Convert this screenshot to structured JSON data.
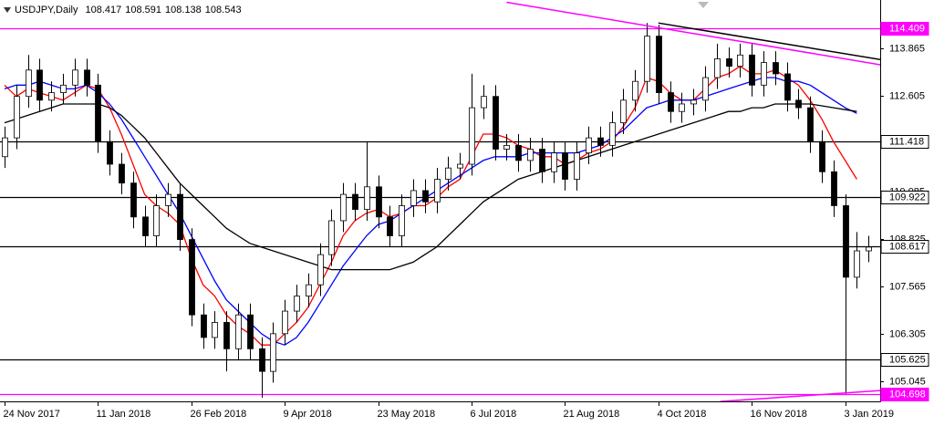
{
  "chart_data": {
    "type": "candlestick",
    "title": "USDJPY,Daily",
    "title_values": [
      108.417,
      108.591,
      108.138,
      108.543
    ],
    "categories": [
      "24 Nov 2017",
      null,
      null,
      null,
      null,
      null,
      null,
      null,
      "11 Jan 2018",
      null,
      null,
      null,
      null,
      null,
      null,
      null,
      "26 Feb 2018",
      null,
      null,
      null,
      null,
      null,
      null,
      null,
      "9 Apr 2018",
      null,
      null,
      null,
      null,
      null,
      null,
      null,
      "23 May 2018",
      null,
      null,
      null,
      null,
      null,
      null,
      null,
      "6 Jul 2018",
      null,
      null,
      null,
      null,
      null,
      null,
      null,
      "21 Aug 2018",
      null,
      null,
      null,
      null,
      null,
      null,
      null,
      "4 Oct 2018",
      null,
      null,
      null,
      null,
      null,
      null,
      null,
      "16 Nov 2018",
      null,
      null,
      null,
      null,
      null,
      null,
      null,
      "3 Jan 2019",
      null,
      null
    ],
    "open": [
      111.0,
      111.5,
      112.6,
      113.3,
      112.5,
      112.7,
      112.9,
      113.3,
      112.9,
      111.4,
      110.8,
      110.3,
      109.4,
      108.9,
      109.7,
      110.0,
      108.8,
      106.8,
      106.2,
      106.6,
      105.9,
      106.8,
      105.9,
      105.3,
      106.3,
      106.9,
      107.3,
      107.6,
      108.4,
      109.3,
      110.0,
      109.6,
      110.2,
      109.4,
      108.9,
      109.7,
      110.1,
      109.8,
      110.4,
      110.7,
      110.8,
      112.3,
      112.6,
      111.2,
      111.3,
      110.9,
      111.2,
      110.6,
      111.1,
      110.4,
      111.1,
      111.5,
      111.3,
      111.9,
      112.5,
      113.0,
      114.2,
      112.7,
      112.2,
      112.4,
      112.5,
      113.1,
      113.6,
      113.4,
      113.7,
      112.9,
      113.5,
      113.2,
      112.5,
      112.3,
      111.4,
      110.6,
      109.7,
      107.8,
      108.5
    ],
    "high": [
      111.8,
      112.9,
      113.7,
      113.6,
      113.0,
      113.2,
      113.6,
      113.6,
      113.2,
      111.7,
      111.1,
      110.6,
      109.7,
      110.0,
      110.3,
      110.3,
      109.1,
      107.1,
      106.9,
      106.9,
      107.1,
      107.1,
      106.2,
      106.6,
      107.2,
      107.6,
      107.9,
      108.7,
      109.6,
      110.3,
      110.3,
      111.4,
      110.5,
      109.7,
      110.0,
      110.4,
      110.4,
      110.7,
      111.0,
      111.1,
      113.2,
      112.9,
      112.9,
      111.6,
      111.6,
      111.5,
      111.5,
      111.4,
      111.4,
      111.4,
      111.8,
      111.8,
      112.2,
      112.8,
      113.3,
      114.55,
      114.5,
      113.0,
      112.7,
      112.8,
      113.4,
      114.0,
      113.9,
      114.0,
      114.0,
      113.8,
      113.8,
      113.5,
      112.8,
      112.6,
      111.7,
      110.9,
      110.0,
      109.0,
      108.9
    ],
    "low": [
      110.7,
      111.2,
      112.3,
      112.2,
      112.2,
      112.4,
      112.6,
      112.6,
      111.1,
      110.5,
      110.0,
      109.1,
      108.6,
      108.6,
      109.4,
      108.5,
      106.5,
      105.9,
      105.9,
      105.3,
      105.6,
      105.6,
      104.6,
      105.0,
      106.0,
      106.6,
      107.0,
      107.3,
      108.1,
      109.0,
      109.3,
      109.3,
      109.1,
      108.6,
      108.6,
      109.4,
      109.5,
      109.5,
      110.1,
      110.4,
      110.5,
      112.0,
      110.9,
      110.9,
      110.6,
      110.6,
      110.3,
      110.3,
      110.1,
      110.1,
      110.8,
      111.0,
      111.0,
      111.6,
      112.2,
      112.7,
      112.4,
      111.9,
      111.9,
      112.1,
      112.2,
      112.8,
      113.1,
      113.1,
      112.6,
      112.6,
      112.9,
      112.2,
      112.0,
      111.1,
      110.3,
      109.4,
      104.7,
      107.5,
      108.2
    ],
    "close": [
      111.5,
      112.6,
      113.3,
      112.5,
      112.7,
      112.9,
      113.3,
      112.9,
      111.4,
      110.8,
      110.3,
      109.4,
      108.9,
      109.7,
      110.0,
      108.8,
      106.8,
      106.2,
      106.6,
      105.9,
      106.8,
      105.9,
      105.3,
      106.3,
      106.9,
      107.3,
      107.6,
      108.4,
      109.3,
      110.0,
      109.6,
      110.2,
      109.4,
      108.9,
      109.7,
      110.1,
      109.8,
      110.4,
      110.7,
      110.8,
      112.3,
      112.6,
      111.2,
      111.3,
      110.9,
      111.2,
      110.6,
      111.1,
      110.4,
      111.1,
      111.5,
      111.3,
      111.9,
      112.5,
      113.0,
      114.2,
      112.7,
      112.2,
      112.4,
      112.5,
      113.1,
      113.6,
      113.4,
      113.7,
      112.9,
      113.5,
      113.2,
      112.5,
      112.3,
      111.4,
      110.6,
      109.7,
      107.8,
      108.5,
      108.6
    ],
    "series": [
      {
        "color": "#ff0000",
        "values": [
          112.9,
          112.6,
          112.8,
          112.7,
          112.6,
          112.5,
          112.7,
          112.9,
          112.8,
          112.3,
          111.6,
          110.8,
          110.0,
          109.7,
          109.5,
          109.2,
          108.3,
          107.6,
          107.3,
          106.8,
          106.5,
          106.3,
          106.0,
          106.0,
          106.3,
          106.6,
          107.0,
          107.6,
          108.2,
          108.9,
          109.3,
          109.5,
          109.6,
          109.4,
          109.5,
          109.7,
          109.7,
          109.9,
          110.2,
          110.4,
          111.0,
          111.6,
          111.6,
          111.5,
          111.3,
          111.2,
          111.0,
          111.0,
          110.8,
          110.9,
          111.1,
          111.2,
          111.4,
          111.8,
          112.3,
          113.1,
          113.0,
          112.7,
          112.5,
          112.5,
          112.8,
          113.1,
          113.2,
          113.4,
          113.2,
          113.2,
          113.3,
          113.1,
          112.9,
          112.5,
          112.0,
          111.4,
          110.9,
          110.4,
          null
        ]
      },
      {
        "color": "#0000ff",
        "values": [
          112.8,
          112.9,
          112.9,
          113.0,
          112.9,
          112.8,
          112.8,
          112.9,
          112.7,
          112.4,
          112.0,
          111.5,
          111.0,
          110.5,
          110.0,
          109.5,
          108.9,
          108.3,
          107.7,
          107.2,
          106.9,
          106.6,
          106.3,
          106.1,
          106.0,
          106.2,
          106.6,
          107.1,
          107.6,
          108.1,
          108.5,
          108.9,
          109.2,
          109.3,
          109.5,
          109.7,
          109.9,
          110.1,
          110.3,
          110.5,
          110.7,
          110.9,
          111.0,
          111.0,
          111.0,
          111.1,
          111.1,
          111.1,
          111.1,
          111.1,
          111.2,
          111.3,
          111.5,
          111.7,
          112.0,
          112.3,
          112.4,
          112.5,
          112.5,
          112.5,
          112.6,
          112.7,
          112.8,
          112.9,
          113.0,
          113.1,
          113.1,
          113.0,
          113.0,
          112.9,
          112.7,
          112.5,
          112.3,
          112.15,
          null
        ]
      },
      {
        "color": "#000000",
        "values": [
          111.9,
          112.0,
          112.1,
          112.2,
          112.3,
          112.4,
          112.4,
          112.4,
          112.4,
          112.3,
          112.1,
          111.8,
          111.5,
          111.1,
          110.7,
          110.3,
          110.0,
          109.7,
          109.4,
          109.1,
          108.9,
          108.7,
          108.6,
          108.5,
          108.4,
          108.3,
          108.2,
          108.1,
          108.0,
          108.0,
          108.0,
          108.0,
          108.0,
          108.0,
          108.1,
          108.2,
          108.4,
          108.6,
          108.9,
          109.2,
          109.5,
          109.8,
          110.0,
          110.2,
          110.4,
          110.5,
          110.6,
          110.7,
          110.8,
          110.9,
          111.0,
          111.1,
          111.2,
          111.3,
          111.4,
          111.5,
          111.6,
          111.7,
          111.8,
          111.9,
          112.0,
          112.1,
          112.2,
          112.2,
          112.3,
          112.3,
          112.4,
          112.4,
          112.4,
          112.4,
          112.35,
          112.3,
          112.25,
          112.2,
          null
        ]
      }
    ],
    "ylim": [
      104.504,
      115.16
    ],
    "yticks": [
      105.045,
      106.305,
      107.565,
      108.825,
      110.085,
      112.605,
      113.865
    ],
    "levels": [
      {
        "value": 114.409,
        "color": "#ff00ff"
      },
      {
        "value": 111.418,
        "color": "#000000"
      },
      {
        "value": 109.922,
        "color": "#000000"
      },
      {
        "value": 108.617,
        "color": "#000000"
      },
      {
        "value": 105.625,
        "color": "#000000"
      },
      {
        "value": 104.698,
        "color": "#ff00ff"
      }
    ],
    "trendlines": [
      {
        "color": "#000000",
        "x": [
          56,
          75.4
        ],
        "y": [
          114.55,
          113.56
        ]
      },
      {
        "color": "#ff00ff",
        "x": [
          43,
          75.4
        ],
        "y": [
          115.1,
          113.42
        ]
      },
      {
        "color": "#ff00ff",
        "x": [
          61.3,
          75.4
        ],
        "y": [
          104.5,
          104.8
        ]
      }
    ],
    "candle_colors": {
      "up": "#ffffff",
      "down": "#000000",
      "outline": "#000000"
    }
  }
}
